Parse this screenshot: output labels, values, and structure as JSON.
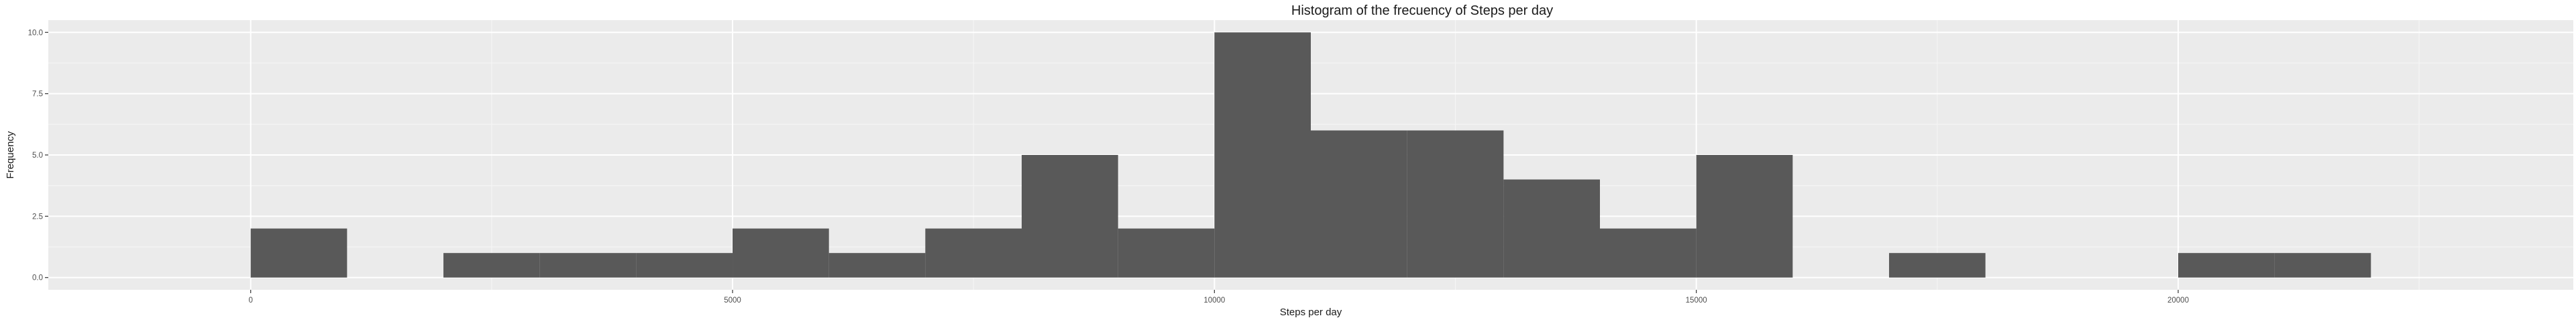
{
  "chart_data": {
    "type": "bar",
    "title": "Histogram of the frecuency of Steps per day",
    "xlabel": "Steps per day",
    "ylabel": "Frequency",
    "bin_width": 1000,
    "bins": [
      {
        "start": 0,
        "end": 1000,
        "count": 2
      },
      {
        "start": 1000,
        "end": 2000,
        "count": 0
      },
      {
        "start": 2000,
        "end": 3000,
        "count": 1
      },
      {
        "start": 3000,
        "end": 4000,
        "count": 1
      },
      {
        "start": 4000,
        "end": 5000,
        "count": 1
      },
      {
        "start": 5000,
        "end": 6000,
        "count": 2
      },
      {
        "start": 6000,
        "end": 7000,
        "count": 1
      },
      {
        "start": 7000,
        "end": 8000,
        "count": 2
      },
      {
        "start": 8000,
        "end": 9000,
        "count": 5
      },
      {
        "start": 9000,
        "end": 10000,
        "count": 2
      },
      {
        "start": 10000,
        "end": 11000,
        "count": 10
      },
      {
        "start": 11000,
        "end": 12000,
        "count": 6
      },
      {
        "start": 12000,
        "end": 13000,
        "count": 6
      },
      {
        "start": 13000,
        "end": 14000,
        "count": 4
      },
      {
        "start": 14000,
        "end": 15000,
        "count": 2
      },
      {
        "start": 15000,
        "end": 16000,
        "count": 5
      },
      {
        "start": 16000,
        "end": 17000,
        "count": 0
      },
      {
        "start": 17000,
        "end": 18000,
        "count": 1
      },
      {
        "start": 18000,
        "end": 19000,
        "count": 0
      },
      {
        "start": 19000,
        "end": 20000,
        "count": 0
      },
      {
        "start": 20000,
        "end": 21000,
        "count": 1
      },
      {
        "start": 21000,
        "end": 22000,
        "count": 1
      }
    ],
    "xlim": [
      -2100,
      24100
    ],
    "ylim": [
      -0.5,
      10.5
    ],
    "x_ticks": [
      0,
      5000,
      10000,
      15000,
      20000
    ],
    "x_tick_labels": [
      "0",
      "5000",
      "10000",
      "15000",
      "20000"
    ],
    "y_ticks": [
      0,
      2.5,
      5,
      7.5,
      10
    ],
    "y_tick_labels": [
      "0.0",
      "2.5",
      "5.0",
      "7.5",
      "10.0"
    ],
    "grid": true,
    "legend": "none",
    "colors": {
      "bar_fill": "#595959",
      "panel_background": "#ebebeb",
      "grid_major": "#ffffff",
      "grid_minor": "#f5f5f5",
      "tick": "#333333"
    }
  }
}
